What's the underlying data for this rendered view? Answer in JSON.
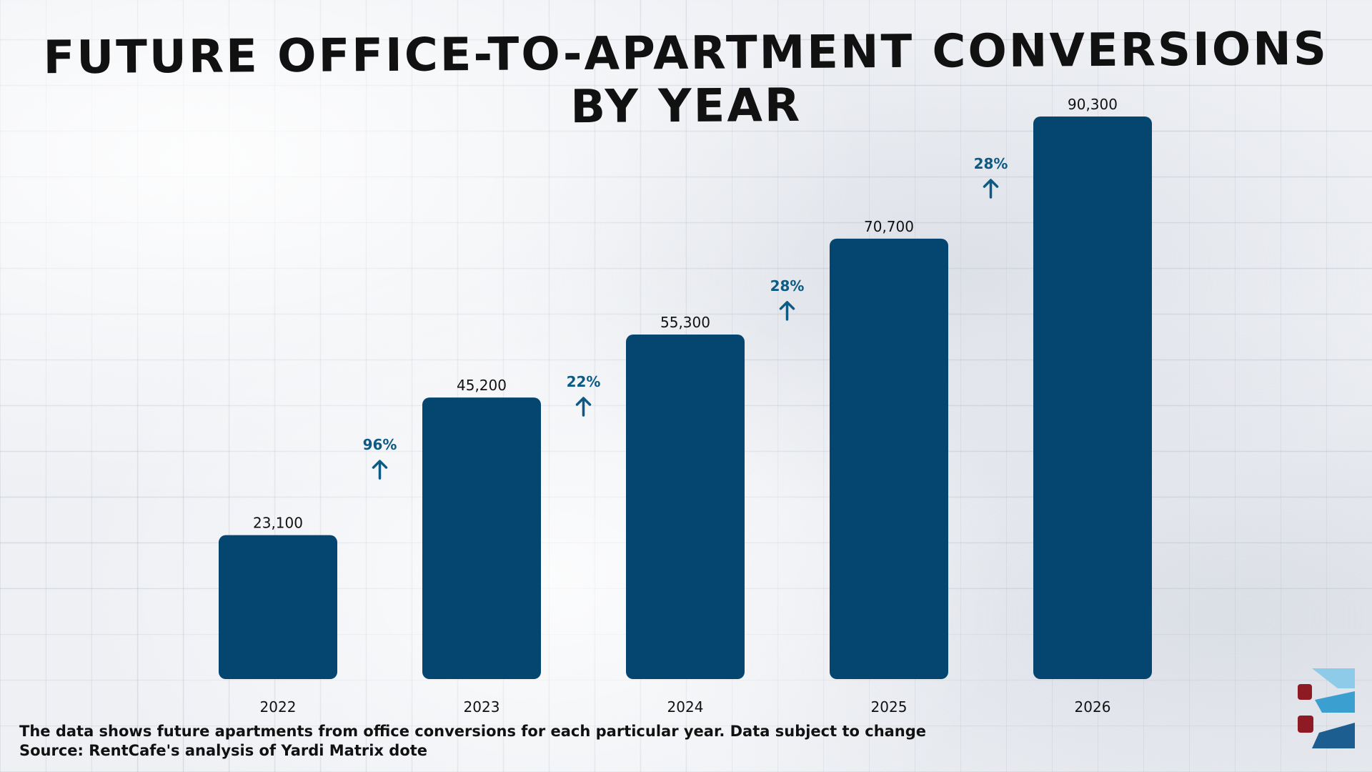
{
  "title": "FUTURE OFFICE-TO-APARTMENT CONVERSIONS BY YEAR",
  "footnote": {
    "note": "The data shows future apartments from office conversions for each particular year. Data subject to change",
    "source": "Source: RentCafe's analysis of Yardi Matrix dote"
  },
  "logo": {
    "icon": "brand-logo-icon"
  },
  "colors": {
    "bar": "#04466f",
    "arrow": "#0d5a85",
    "text": "#111111"
  },
  "chart_data": {
    "type": "bar",
    "title": "FUTURE OFFICE-TO-APARTMENT CONVERSIONS BY YEAR",
    "categories": [
      "2022",
      "2023",
      "2024",
      "2025",
      "2026"
    ],
    "values": [
      23100,
      45200,
      55300,
      70700,
      90300
    ],
    "value_labels": [
      "23,100",
      "45,200",
      "55,300",
      "70,700",
      "90,300"
    ],
    "growth_labels": [
      "96%",
      "22%",
      "28%",
      "28%"
    ],
    "xlabel": "",
    "ylabel": "",
    "ylim": [
      0,
      90300
    ],
    "grid": false,
    "legend": "none"
  }
}
